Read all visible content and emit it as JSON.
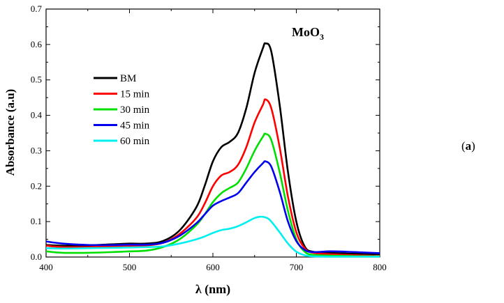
{
  "panel_label": {
    "open": "(",
    "letter": "a",
    "close": ")"
  },
  "chart_data": {
    "type": "line",
    "annotation": {
      "base": "MoO",
      "sub": "3"
    },
    "xlabel": "λ (nm)",
    "ylabel": "Absorbance (a.u)",
    "xlim": [
      400,
      800
    ],
    "ylim": [
      0,
      0.7
    ],
    "xticks": [
      400,
      500,
      600,
      700,
      800
    ],
    "yticks": [
      0.0,
      0.1,
      0.2,
      0.3,
      0.4,
      0.5,
      0.6,
      0.7
    ],
    "xtick_labels": [
      "400",
      "500",
      "600",
      "700",
      "800"
    ],
    "ytick_labels": [
      "0.0",
      "0.1",
      "0.2",
      "0.3",
      "0.4",
      "0.5",
      "0.6",
      "0.7"
    ],
    "grid": false,
    "legend_position": "upper-left",
    "series": [
      {
        "name": "BM",
        "color": "#000000",
        "x": [
          400,
          420,
          450,
          480,
          500,
          520,
          540,
          560,
          580,
          590,
          600,
          610,
          620,
          630,
          640,
          650,
          660,
          663,
          670,
          680,
          690,
          700,
          710,
          720,
          740,
          760,
          780,
          800
        ],
        "y": [
          0.034,
          0.032,
          0.033,
          0.036,
          0.038,
          0.038,
          0.045,
          0.075,
          0.14,
          0.2,
          0.27,
          0.31,
          0.325,
          0.35,
          0.42,
          0.52,
          0.59,
          0.603,
          0.58,
          0.43,
          0.24,
          0.1,
          0.03,
          0.015,
          0.012,
          0.01,
          0.009,
          0.008
        ]
      },
      {
        "name": "15 min",
        "color": "#ff0000",
        "x": [
          400,
          420,
          450,
          480,
          500,
          520,
          540,
          560,
          580,
          590,
          600,
          610,
          620,
          630,
          640,
          650,
          660,
          663,
          670,
          680,
          690,
          700,
          710,
          720,
          740,
          760,
          780,
          800
        ],
        "y": [
          0.032,
          0.028,
          0.028,
          0.03,
          0.032,
          0.033,
          0.04,
          0.065,
          0.11,
          0.15,
          0.2,
          0.23,
          0.24,
          0.26,
          0.31,
          0.38,
          0.43,
          0.445,
          0.42,
          0.31,
          0.17,
          0.07,
          0.025,
          0.012,
          0.008,
          0.006,
          0.004,
          0.003
        ]
      },
      {
        "name": "30 min",
        "color": "#00e000",
        "x": [
          400,
          420,
          450,
          480,
          500,
          520,
          540,
          560,
          580,
          590,
          600,
          610,
          620,
          630,
          640,
          650,
          660,
          663,
          670,
          680,
          690,
          700,
          710,
          720,
          740,
          760,
          780,
          800
        ],
        "y": [
          0.016,
          0.012,
          0.012,
          0.014,
          0.016,
          0.018,
          0.028,
          0.05,
          0.09,
          0.12,
          0.155,
          0.18,
          0.195,
          0.21,
          0.25,
          0.3,
          0.34,
          0.348,
          0.33,
          0.24,
          0.13,
          0.05,
          0.015,
          0.006,
          0.004,
          0.003,
          0.002,
          0.002
        ]
      },
      {
        "name": "45 min",
        "color": "#0000ee",
        "x": [
          400,
          420,
          450,
          480,
          500,
          520,
          540,
          560,
          580,
          590,
          600,
          610,
          620,
          630,
          640,
          650,
          660,
          663,
          670,
          680,
          690,
          700,
          710,
          720,
          740,
          760,
          780,
          800
        ],
        "y": [
          0.044,
          0.038,
          0.034,
          0.034,
          0.035,
          0.035,
          0.04,
          0.06,
          0.095,
          0.12,
          0.145,
          0.158,
          0.168,
          0.18,
          0.21,
          0.24,
          0.265,
          0.27,
          0.255,
          0.185,
          0.1,
          0.045,
          0.02,
          0.014,
          0.016,
          0.015,
          0.013,
          0.011
        ]
      },
      {
        "name": "60 min",
        "color": "#00f0f0",
        "x": [
          400,
          420,
          450,
          480,
          500,
          520,
          540,
          560,
          580,
          590,
          600,
          610,
          620,
          630,
          640,
          650,
          658,
          665,
          670,
          680,
          690,
          700,
          710,
          720,
          740,
          760,
          780,
          800
        ],
        "y": [
          0.025,
          0.024,
          0.025,
          0.026,
          0.027,
          0.028,
          0.03,
          0.038,
          0.05,
          0.058,
          0.068,
          0.076,
          0.08,
          0.087,
          0.098,
          0.11,
          0.114,
          0.11,
          0.1,
          0.07,
          0.038,
          0.015,
          0.005,
          0.002,
          0.001,
          0.001,
          0.001,
          0.001
        ]
      }
    ]
  }
}
